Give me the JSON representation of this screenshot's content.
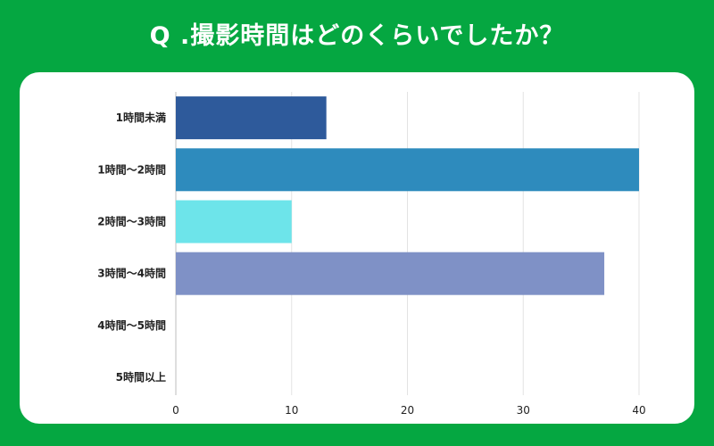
{
  "title": "Q .撮影時間はどのくらいでしたか？",
  "chart_data": {
    "type": "bar",
    "orientation": "horizontal",
    "title": "Q .撮影時間はどのくらいでしたか？",
    "categories": [
      "1時間未満",
      "1時間〜2時間",
      "2時間〜3時間",
      "3時間〜4時間",
      "4時間〜5時間",
      "5時間以上"
    ],
    "values": [
      13,
      40,
      10,
      37,
      0,
      0
    ],
    "colors": [
      "#2e5a9b",
      "#2e8bbd",
      "#6de4ea",
      "#7f91c6",
      "#999999",
      "#999999"
    ],
    "xlim": [
      0,
      40
    ],
    "xticks": [
      0,
      10,
      20,
      30,
      40
    ],
    "grid": true,
    "xlabel": "",
    "ylabel": ""
  }
}
